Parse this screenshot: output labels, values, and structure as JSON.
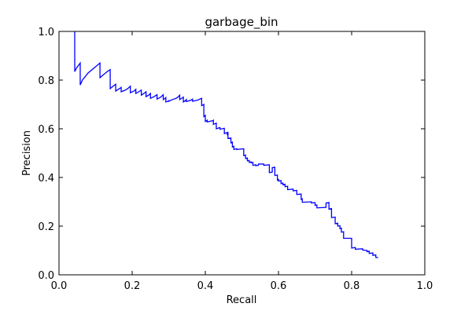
{
  "chart_data": {
    "type": "line",
    "title": "garbage_bin",
    "xlabel": "Recall",
    "ylabel": "Precision",
    "xlim": [
      0.0,
      1.0
    ],
    "ylim": [
      0.0,
      1.0
    ],
    "xticks": [
      "0.0",
      "0.2",
      "0.4",
      "0.6",
      "0.8",
      "1.0"
    ],
    "yticks": [
      "0.0",
      "0.2",
      "0.4",
      "0.6",
      "0.8",
      "1.0"
    ],
    "grid": false,
    "line_color": "#0000ff",
    "series": [
      {
        "x": [
          0.043,
          0.043,
          0.048,
          0.058,
          0.058,
          0.064,
          0.08,
          0.1,
          0.112,
          0.112,
          0.12,
          0.132,
          0.14,
          0.14,
          0.148,
          0.155,
          0.155,
          0.162,
          0.17,
          0.17,
          0.18,
          0.188,
          0.195,
          0.195,
          0.205,
          0.21,
          0.21,
          0.218,
          0.225,
          0.225,
          0.232,
          0.238,
          0.238,
          0.245,
          0.25,
          0.25,
          0.26,
          0.268,
          0.268,
          0.278,
          0.285,
          0.285,
          0.29,
          0.292,
          0.292,
          0.298,
          0.3,
          0.3,
          0.31,
          0.32,
          0.325,
          0.33,
          0.33,
          0.335,
          0.34,
          0.34,
          0.345,
          0.348,
          0.348,
          0.36,
          0.365,
          0.365,
          0.38,
          0.385,
          0.39,
          0.39,
          0.396,
          0.396,
          0.4,
          0.4,
          0.405,
          0.405,
          0.42,
          0.422,
          0.422,
          0.43,
          0.43,
          0.44,
          0.44,
          0.452,
          0.452,
          0.46,
          0.46,
          0.462,
          0.462,
          0.47,
          0.47,
          0.474,
          0.474,
          0.478,
          0.478,
          0.486,
          0.486,
          0.505,
          0.505,
          0.51,
          0.51,
          0.515,
          0.515,
          0.52,
          0.52,
          0.525,
          0.525,
          0.53,
          0.53,
          0.538,
          0.538,
          0.545,
          0.545,
          0.56,
          0.56,
          0.575,
          0.575,
          0.583,
          0.583,
          0.59,
          0.59,
          0.597,
          0.597,
          0.6,
          0.6,
          0.607,
          0.607,
          0.612,
          0.612,
          0.618,
          0.618,
          0.625,
          0.625,
          0.64,
          0.64,
          0.65,
          0.65,
          0.662,
          0.662,
          0.665,
          0.665,
          0.69,
          0.69,
          0.7,
          0.7,
          0.705,
          0.705,
          0.73,
          0.73,
          0.738,
          0.738,
          0.745,
          0.745,
          0.755,
          0.755,
          0.762,
          0.762,
          0.768,
          0.768,
          0.772,
          0.772,
          0.778,
          0.778,
          0.8,
          0.8,
          0.81,
          0.81,
          0.83,
          0.83,
          0.842,
          0.842,
          0.848,
          0.848,
          0.858,
          0.858,
          0.866,
          0.866,
          0.872
        ],
        "y": [
          1.0,
          0.835,
          0.85,
          0.87,
          0.78,
          0.8,
          0.83,
          0.855,
          0.87,
          0.81,
          0.82,
          0.835,
          0.843,
          0.765,
          0.775,
          0.783,
          0.755,
          0.762,
          0.77,
          0.752,
          0.758,
          0.765,
          0.775,
          0.748,
          0.755,
          0.762,
          0.745,
          0.752,
          0.759,
          0.738,
          0.745,
          0.752,
          0.732,
          0.738,
          0.745,
          0.725,
          0.732,
          0.74,
          0.722,
          0.73,
          0.74,
          0.72,
          0.725,
          0.728,
          0.71,
          0.713,
          0.715,
          0.713,
          0.72,
          0.725,
          0.73,
          0.738,
          0.72,
          0.725,
          0.73,
          0.71,
          0.715,
          0.72,
          0.712,
          0.717,
          0.722,
          0.713,
          0.718,
          0.722,
          0.725,
          0.695,
          0.7,
          0.65,
          0.655,
          0.63,
          0.635,
          0.628,
          0.633,
          0.635,
          0.618,
          0.623,
          0.6,
          0.605,
          0.598,
          0.602,
          0.58,
          0.585,
          0.578,
          0.582,
          0.56,
          0.562,
          0.542,
          0.545,
          0.525,
          0.528,
          0.515,
          0.518,
          0.515,
          0.518,
          0.49,
          0.492,
          0.478,
          0.48,
          0.468,
          0.47,
          0.462,
          0.464,
          0.46,
          0.462,
          0.45,
          0.452,
          0.448,
          0.45,
          0.455,
          0.455,
          0.45,
          0.452,
          0.42,
          0.422,
          0.44,
          0.442,
          0.408,
          0.41,
          0.39,
          0.392,
          0.385,
          0.387,
          0.375,
          0.377,
          0.37,
          0.372,
          0.362,
          0.364,
          0.35,
          0.352,
          0.345,
          0.347,
          0.33,
          0.332,
          0.31,
          0.312,
          0.298,
          0.3,
          0.295,
          0.297,
          0.285,
          0.287,
          0.275,
          0.277,
          0.295,
          0.297,
          0.27,
          0.272,
          0.235,
          0.237,
          0.21,
          0.212,
          0.2,
          0.202,
          0.19,
          0.192,
          0.175,
          0.177,
          0.15,
          0.15,
          0.11,
          0.112,
          0.105,
          0.107,
          0.102,
          0.1,
          0.095,
          0.097,
          0.088,
          0.09,
          0.08,
          0.082,
          0.072,
          0.07
        ]
      }
    ]
  }
}
